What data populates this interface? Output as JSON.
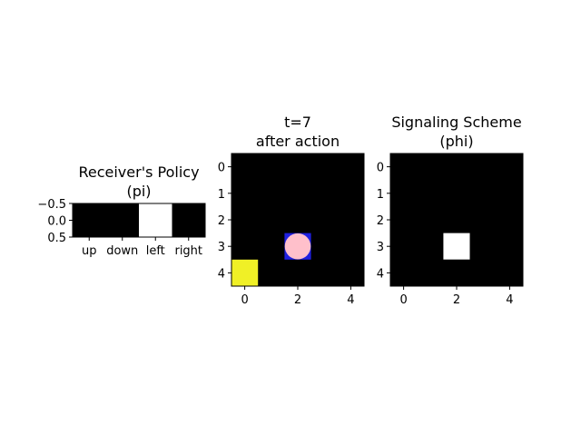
{
  "colors": {
    "background": "#ffffff",
    "cell_off": "#000000",
    "cell_on": "#ffffff",
    "goal": "#f0f026",
    "agent_cell": "#2020e0",
    "agent_marker": "#ffc0cb",
    "axis": "#000000"
  },
  "chart_data": [
    {
      "type": "heatmap",
      "title_line1": "Receiver's Policy",
      "title_line2": "(pi)",
      "rows": 1,
      "cols": 4,
      "xticks": [
        {
          "at": 0,
          "label": "up"
        },
        {
          "at": 1,
          "label": "down"
        },
        {
          "at": 2,
          "label": "left"
        },
        {
          "at": 3,
          "label": "right"
        }
      ],
      "yticks": [
        {
          "at": -0.5,
          "label": "−0.5"
        },
        {
          "at": 0.0,
          "label": "0.0"
        },
        {
          "at": 0.5,
          "label": "0.5"
        }
      ],
      "xlim": [
        -0.5,
        3.5
      ],
      "ylim": [
        -0.5,
        0.5
      ],
      "values": [
        [
          0,
          0,
          1,
          0
        ]
      ]
    },
    {
      "type": "heatmap",
      "title_line1": "t=7",
      "title_line2": "after action",
      "rows": 5,
      "cols": 5,
      "xticks": [
        {
          "at": 0,
          "label": "0"
        },
        {
          "at": 2,
          "label": "2"
        },
        {
          "at": 4,
          "label": "4"
        }
      ],
      "yticks": [
        {
          "at": 0,
          "label": "0"
        },
        {
          "at": 1,
          "label": "1"
        },
        {
          "at": 2,
          "label": "2"
        },
        {
          "at": 3,
          "label": "3"
        },
        {
          "at": 4,
          "label": "4"
        }
      ],
      "xlim": [
        -0.5,
        4.5
      ],
      "ylim": [
        -0.5,
        4.5
      ],
      "goal": {
        "x": 0,
        "y": 4
      },
      "agent": {
        "x": 2,
        "y": 3
      }
    },
    {
      "type": "heatmap",
      "title_line1": "Signaling Scheme",
      "title_line2": "(phi)",
      "rows": 5,
      "cols": 5,
      "xticks": [
        {
          "at": 0,
          "label": "0"
        },
        {
          "at": 2,
          "label": "2"
        },
        {
          "at": 4,
          "label": "4"
        }
      ],
      "yticks": [
        {
          "at": 0,
          "label": "0"
        },
        {
          "at": 1,
          "label": "1"
        },
        {
          "at": 2,
          "label": "2"
        },
        {
          "at": 3,
          "label": "3"
        },
        {
          "at": 4,
          "label": "4"
        }
      ],
      "xlim": [
        -0.5,
        4.5
      ],
      "ylim": [
        -0.5,
        4.5
      ],
      "values": [
        [
          0,
          0,
          0,
          0,
          0
        ],
        [
          0,
          0,
          0,
          0,
          0
        ],
        [
          0,
          0,
          0,
          0,
          0
        ],
        [
          0,
          0,
          1,
          0,
          0
        ],
        [
          0,
          0,
          0,
          0,
          0
        ]
      ]
    }
  ]
}
